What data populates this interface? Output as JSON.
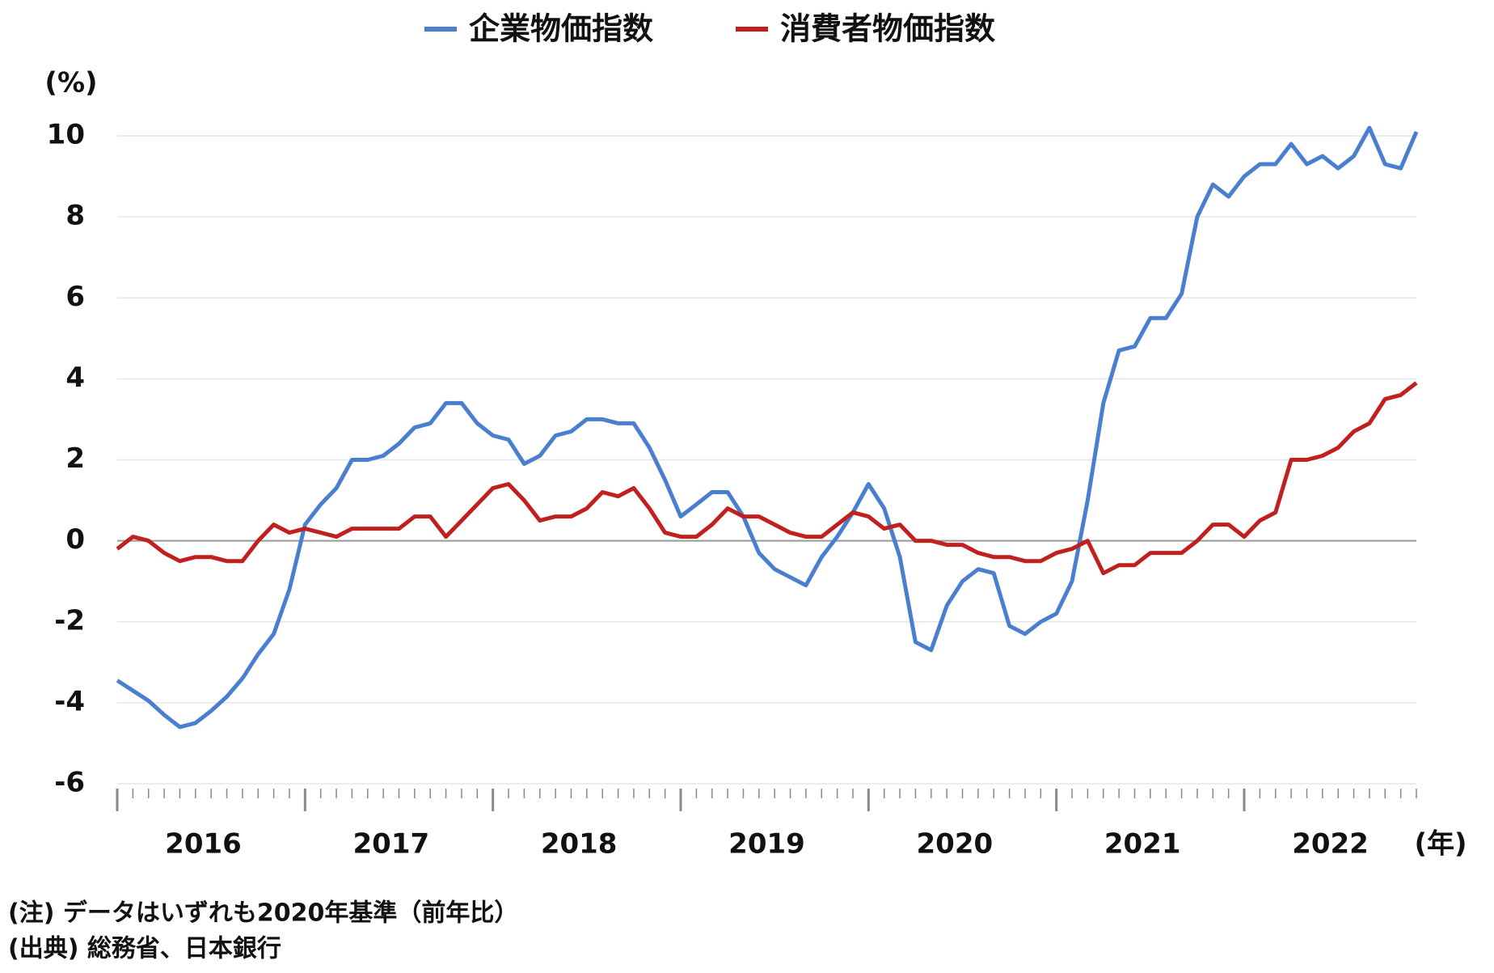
{
  "chart_data": {
    "type": "line",
    "ylabel": "(%)",
    "xlabel": "(年)",
    "categories": [
      null,
      null,
      null,
      null,
      null,
      null,
      "2016",
      null,
      null,
      null,
      null,
      null,
      null,
      null,
      null,
      null,
      null,
      null,
      "2017",
      null,
      null,
      null,
      null,
      null,
      null,
      null,
      null,
      null,
      null,
      null,
      "2018",
      null,
      null,
      null,
      null,
      null,
      null,
      null,
      null,
      null,
      null,
      null,
      "2019",
      null,
      null,
      null,
      null,
      null,
      null,
      null,
      null,
      null,
      null,
      null,
      "2020",
      null,
      null,
      null,
      null,
      null,
      null,
      null,
      null,
      null,
      null,
      null,
      "2021",
      null,
      null,
      null,
      null,
      null,
      null,
      null,
      null,
      null,
      null,
      null,
      "2022",
      null,
      null,
      null,
      null,
      null
    ],
    "series": [
      {
        "name": "企業物価指数",
        "color": "#4a7fcf",
        "values": [
          -3.45,
          -3.7,
          -3.95,
          -4.3,
          -4.6,
          -4.5,
          -4.2,
          -3.85,
          -3.4,
          -2.8,
          -2.3,
          -1.2,
          0.4,
          0.9,
          1.3,
          2.0,
          2.0,
          2.1,
          2.4,
          2.8,
          2.9,
          3.4,
          3.4,
          2.9,
          2.6,
          2.5,
          1.9,
          2.1,
          2.6,
          2.7,
          3.0,
          3.0,
          2.9,
          2.9,
          2.3,
          1.5,
          0.6,
          0.9,
          1.2,
          1.2,
          0.6,
          -0.3,
          -0.7,
          -0.9,
          -1.1,
          -0.4,
          0.1,
          0.7,
          1.4,
          0.8,
          -0.4,
          -2.5,
          -2.7,
          -1.6,
          -1.0,
          -0.7,
          -0.8,
          -2.1,
          -2.3,
          -2.0,
          -1.8,
          -1.0,
          1.0,
          3.4,
          4.7,
          4.8,
          5.5,
          5.5,
          6.1,
          8.0,
          8.8,
          8.5,
          9.0,
          9.3,
          9.3,
          9.8,
          9.3,
          9.5,
          9.2,
          9.5,
          10.2,
          9.3,
          9.2,
          10.1
        ]
      },
      {
        "name": "消費者物価指数",
        "color": "#c0201e",
        "values": [
          -0.2,
          0.1,
          0.0,
          -0.3,
          -0.5,
          -0.4,
          -0.4,
          -0.5,
          -0.5,
          0.0,
          0.4,
          0.2,
          0.3,
          0.2,
          0.1,
          0.3,
          0.3,
          0.3,
          0.3,
          0.6,
          0.6,
          0.1,
          0.5,
          0.9,
          1.3,
          1.4,
          1.0,
          0.5,
          0.6,
          0.6,
          0.8,
          1.2,
          1.1,
          1.3,
          0.8,
          0.2,
          0.1,
          0.1,
          0.4,
          0.8,
          0.6,
          0.6,
          0.4,
          0.2,
          0.1,
          0.1,
          0.4,
          0.7,
          0.6,
          0.3,
          0.4,
          0.0,
          0.0,
          -0.1,
          -0.1,
          -0.3,
          -0.4,
          -0.4,
          -0.5,
          -0.5,
          -0.3,
          -0.2,
          0.0,
          -0.8,
          -0.6,
          -0.6,
          -0.3,
          -0.3,
          -0.3,
          0.0,
          0.4,
          0.4,
          0.1,
          0.5,
          0.7,
          2.0,
          2.0,
          2.1,
          2.3,
          2.7,
          2.9,
          3.5,
          3.6,
          3.9
        ]
      }
    ],
    "ylim": [
      -6,
      10
    ],
    "yticks": [
      -6,
      -4,
      -2,
      0,
      2,
      4,
      6,
      8,
      10
    ],
    "grid": true,
    "legend": "top",
    "notes": [
      "(注) データはいずれも2020年基準（前年比）",
      "(出典) 総務省、日本銀行"
    ]
  }
}
